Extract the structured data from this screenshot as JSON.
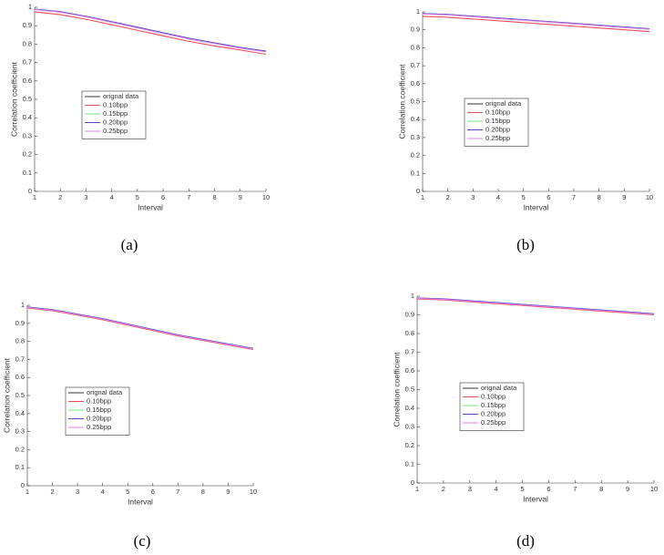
{
  "chart_data": [
    {
      "type": "line",
      "panel_label": "(a)",
      "xlabel": "Interval",
      "ylabel": "Correlation coefficient",
      "x": [
        1,
        2,
        3,
        4,
        5,
        6,
        7,
        8,
        9,
        10
      ],
      "xlim": [
        1,
        10
      ],
      "xticks": [
        1,
        2,
        3,
        4,
        5,
        6,
        7,
        8,
        9,
        10
      ],
      "ylim": [
        0,
        1
      ],
      "yticks": [
        0,
        0.1,
        0.2,
        0.3,
        0.4,
        0.5,
        0.6,
        0.7,
        0.8,
        0.9,
        1
      ],
      "series": [
        {
          "name": "orignal data",
          "color": "#333333",
          "values": [
            0.99,
            0.975,
            0.95,
            0.92,
            0.89,
            0.86,
            0.83,
            0.805,
            0.78,
            0.76
          ]
        },
        {
          "name": "0.10bpp",
          "color": "#e8505a",
          "values": [
            0.975,
            0.96,
            0.935,
            0.905,
            0.875,
            0.845,
            0.815,
            0.79,
            0.768,
            0.745
          ]
        },
        {
          "name": "0.15bpp",
          "color": "#7fe07f",
          "values": [
            0.99,
            0.975,
            0.95,
            0.921,
            0.891,
            0.861,
            0.831,
            0.806,
            0.781,
            0.761
          ]
        },
        {
          "name": "0.20bpp",
          "color": "#4a4ac8",
          "values": [
            0.99,
            0.976,
            0.951,
            0.922,
            0.892,
            0.862,
            0.832,
            0.807,
            0.782,
            0.762
          ]
        },
        {
          "name": "0.25bpp",
          "color": "#e07fe0",
          "values": [
            0.988,
            0.973,
            0.948,
            0.918,
            0.888,
            0.858,
            0.828,
            0.803,
            0.778,
            0.758
          ]
        }
      ]
    },
    {
      "type": "line",
      "panel_label": "(b)",
      "xlabel": "Interval",
      "ylabel": "Correlation coefficient",
      "x": [
        1,
        2,
        3,
        4,
        5,
        6,
        7,
        8,
        9,
        10
      ],
      "xlim": [
        1,
        10
      ],
      "xticks": [
        1,
        2,
        3,
        4,
        5,
        6,
        7,
        8,
        9,
        10
      ],
      "ylim": [
        0,
        1
      ],
      "yticks": [
        0,
        0.1,
        0.2,
        0.3,
        0.4,
        0.5,
        0.6,
        0.7,
        0.8,
        0.9,
        1
      ],
      "series": [
        {
          "name": "orignal data",
          "color": "#333333",
          "values": [
            0.99,
            0.985,
            0.975,
            0.965,
            0.955,
            0.945,
            0.935,
            0.925,
            0.915,
            0.905
          ]
        },
        {
          "name": "0.10bpp",
          "color": "#e8505a",
          "values": [
            0.975,
            0.97,
            0.96,
            0.95,
            0.94,
            0.93,
            0.92,
            0.91,
            0.9,
            0.89
          ]
        },
        {
          "name": "0.15bpp",
          "color": "#7fe07f",
          "values": [
            0.99,
            0.985,
            0.975,
            0.965,
            0.955,
            0.945,
            0.935,
            0.925,
            0.915,
            0.905
          ]
        },
        {
          "name": "0.20bpp",
          "color": "#4a4ac8",
          "values": [
            0.99,
            0.986,
            0.976,
            0.966,
            0.956,
            0.946,
            0.936,
            0.926,
            0.916,
            0.906
          ]
        },
        {
          "name": "0.25bpp",
          "color": "#e07fe0",
          "values": [
            0.988,
            0.983,
            0.973,
            0.963,
            0.953,
            0.943,
            0.933,
            0.923,
            0.913,
            0.903
          ]
        }
      ]
    },
    {
      "type": "line",
      "panel_label": "(c)",
      "xlabel": "Interval",
      "ylabel": "Correlation coefficient",
      "x": [
        1,
        2,
        3,
        4,
        5,
        6,
        7,
        8,
        9,
        10
      ],
      "xlim": [
        1,
        10
      ],
      "xticks": [
        1,
        2,
        3,
        4,
        5,
        6,
        7,
        8,
        9,
        10
      ],
      "ylim": [
        0,
        1
      ],
      "yticks": [
        0,
        0.1,
        0.2,
        0.3,
        0.4,
        0.5,
        0.6,
        0.7,
        0.8,
        0.9,
        1
      ],
      "series": [
        {
          "name": "orignal data",
          "color": "#333333",
          "values": [
            0.99,
            0.975,
            0.95,
            0.925,
            0.895,
            0.865,
            0.835,
            0.81,
            0.785,
            0.76
          ]
        },
        {
          "name": "0.10bpp",
          "color": "#e8505a",
          "values": [
            0.985,
            0.97,
            0.945,
            0.92,
            0.89,
            0.86,
            0.83,
            0.805,
            0.78,
            0.755
          ]
        },
        {
          "name": "0.15bpp",
          "color": "#7fe07f",
          "values": [
            0.99,
            0.975,
            0.95,
            0.925,
            0.895,
            0.865,
            0.835,
            0.81,
            0.785,
            0.76
          ]
        },
        {
          "name": "0.20bpp",
          "color": "#4a4ac8",
          "values": [
            0.99,
            0.976,
            0.951,
            0.926,
            0.896,
            0.866,
            0.836,
            0.811,
            0.786,
            0.761
          ]
        },
        {
          "name": "0.25bpp",
          "color": "#e07fe0",
          "values": [
            0.988,
            0.973,
            0.948,
            0.923,
            0.893,
            0.863,
            0.833,
            0.808,
            0.783,
            0.758
          ]
        }
      ]
    },
    {
      "type": "line",
      "panel_label": "(d)",
      "xlabel": "Interval",
      "ylabel": "Correlation coefficient",
      "x": [
        1,
        2,
        3,
        4,
        5,
        6,
        7,
        8,
        9,
        10
      ],
      "xlim": [
        1,
        10
      ],
      "xticks": [
        1,
        2,
        3,
        4,
        5,
        6,
        7,
        8,
        9,
        10
      ],
      "ylim": [
        0,
        1
      ],
      "yticks": [
        0,
        0.1,
        0.2,
        0.3,
        0.4,
        0.5,
        0.6,
        0.7,
        0.8,
        0.9,
        1
      ],
      "series": [
        {
          "name": "orignal data",
          "color": "#333333",
          "values": [
            0.99,
            0.985,
            0.975,
            0.965,
            0.955,
            0.945,
            0.935,
            0.925,
            0.915,
            0.905
          ]
        },
        {
          "name": "0.10bpp",
          "color": "#e8505a",
          "values": [
            0.985,
            0.98,
            0.97,
            0.96,
            0.95,
            0.94,
            0.93,
            0.92,
            0.91,
            0.9
          ]
        },
        {
          "name": "0.15bpp",
          "color": "#7fe07f",
          "values": [
            0.99,
            0.985,
            0.975,
            0.965,
            0.955,
            0.945,
            0.935,
            0.925,
            0.915,
            0.905
          ]
        },
        {
          "name": "0.20bpp",
          "color": "#4a4ac8",
          "values": [
            0.99,
            0.986,
            0.976,
            0.966,
            0.956,
            0.946,
            0.936,
            0.926,
            0.916,
            0.906
          ]
        },
        {
          "name": "0.25bpp",
          "color": "#e07fe0",
          "values": [
            0.988,
            0.983,
            0.973,
            0.963,
            0.953,
            0.943,
            0.933,
            0.923,
            0.913,
            0.903
          ]
        }
      ]
    }
  ]
}
